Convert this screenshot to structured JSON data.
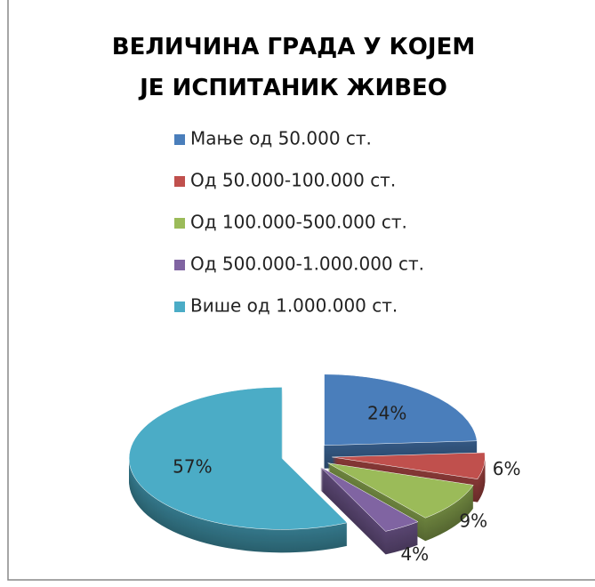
{
  "chart_data": {
    "type": "pie",
    "title": "ВЕЛИЧИНА ГРАДА У КОЈЕМ ЈЕ ИСПИТАНИК ЖИВЕО",
    "categories": [
      "Мање од 50.000 ст.",
      "Од 50.000-100.000 ст.",
      "Од 100.000-500.000 ст.",
      "Од 500.000-1.000.000 ст.",
      "Више од 1.000.000 ст."
    ],
    "values": [
      24,
      6,
      9,
      4,
      57
    ],
    "value_labels": [
      "24%",
      "6%",
      "9%",
      "4%",
      "57%"
    ],
    "colors": [
      "#4a7ebb",
      "#c0504d",
      "#9bbb59",
      "#8064a2",
      "#4bacc6"
    ],
    "legend": "top"
  }
}
